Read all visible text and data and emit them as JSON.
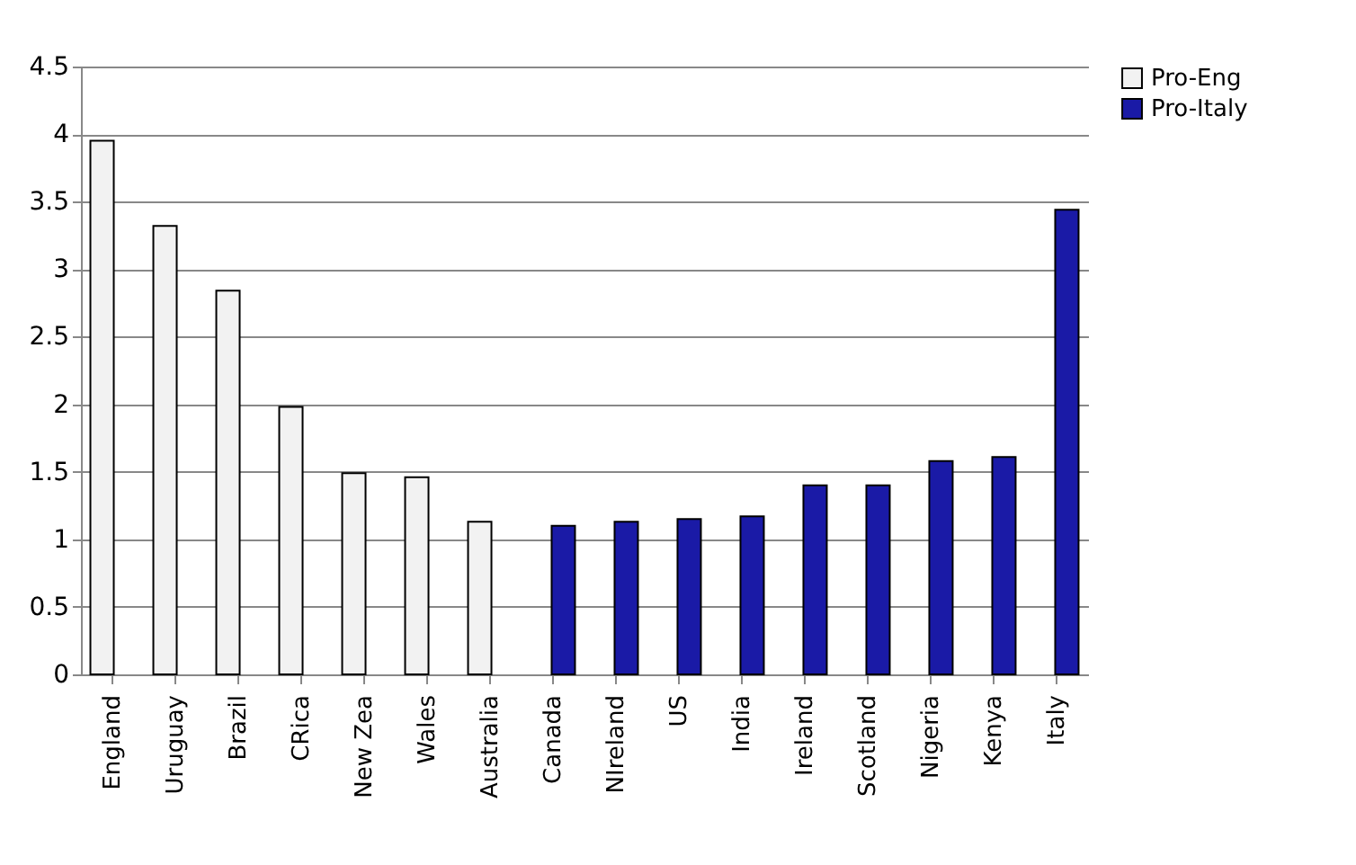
{
  "chart_data": {
    "type": "bar",
    "categories": [
      "England",
      "Uruguay",
      "Brazil",
      "CRica",
      "New Zea",
      "Wales",
      "Australia",
      "Canada",
      "NIreland",
      "US",
      "India",
      "Ireland",
      "Scotland",
      "Nigeria",
      "Kenya",
      "Italy"
    ],
    "series": [
      {
        "name": "Pro-Eng",
        "color": "#f2f2f2",
        "values": [
          3.95,
          3.32,
          2.84,
          1.98,
          1.49,
          1.46,
          1.13,
          null,
          null,
          null,
          null,
          null,
          null,
          null,
          null,
          null
        ]
      },
      {
        "name": "Pro-Italy",
        "color": "#1a1aa6",
        "values": [
          null,
          null,
          null,
          null,
          null,
          null,
          null,
          1.1,
          1.13,
          1.15,
          1.17,
          1.4,
          1.4,
          1.58,
          1.61,
          3.44
        ]
      }
    ],
    "ylim": [
      0,
      4.5
    ],
    "yticks": [
      0,
      0.5,
      1,
      1.5,
      2,
      2.5,
      3,
      3.5,
      4,
      4.5
    ],
    "grid": "y",
    "legend": "right"
  }
}
